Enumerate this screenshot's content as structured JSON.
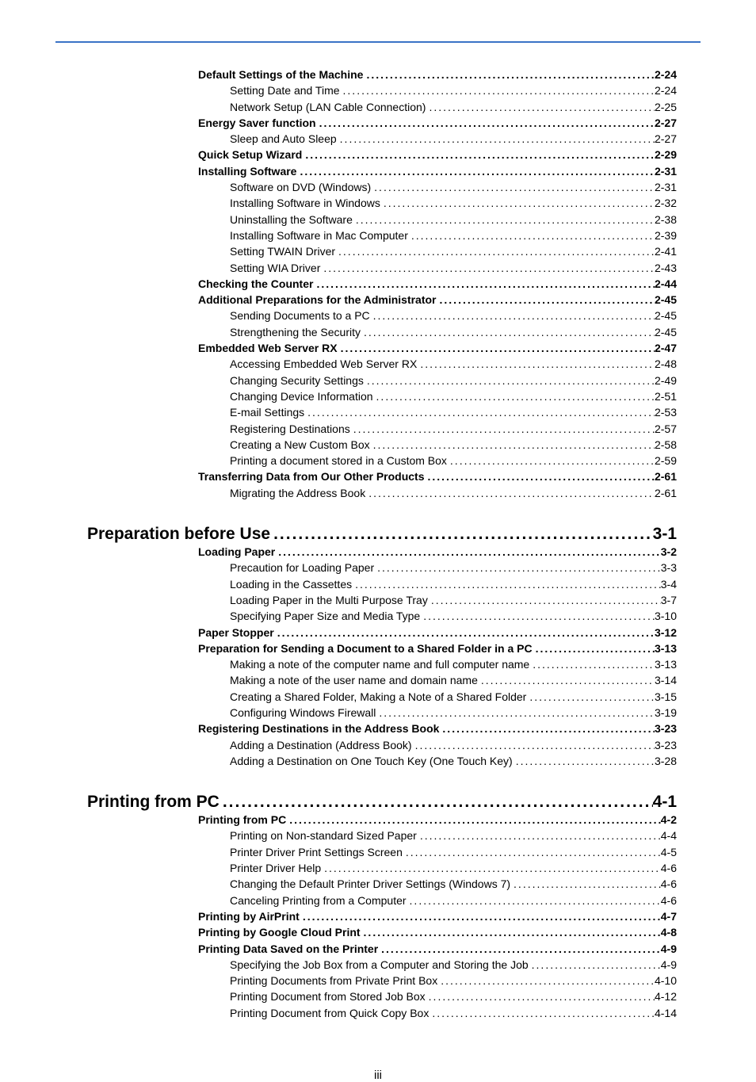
{
  "sections": [
    {
      "chapter_num": "",
      "chapter_title": "",
      "chapter_page": "",
      "entries": [
        {
          "level": 1,
          "title": "Default Settings of the Machine",
          "page": "2-24"
        },
        {
          "level": 2,
          "title": "Setting Date and Time",
          "page": "2-24"
        },
        {
          "level": 2,
          "title": "Network Setup (LAN Cable Connection)",
          "page": "2-25"
        },
        {
          "level": 1,
          "title": "Energy Saver function",
          "page": "2-27"
        },
        {
          "level": 2,
          "title": "Sleep and Auto Sleep",
          "page": "2-27"
        },
        {
          "level": 1,
          "title": "Quick Setup Wizard",
          "page": "2-29"
        },
        {
          "level": 1,
          "title": "Installing Software",
          "page": "2-31"
        },
        {
          "level": 2,
          "title": "Software on DVD (Windows)",
          "page": "2-31"
        },
        {
          "level": 2,
          "title": "Installing Software in Windows",
          "page": "2-32"
        },
        {
          "level": 2,
          "title": "Uninstalling the Software",
          "page": "2-38"
        },
        {
          "level": 2,
          "title": "Installing Software in Mac Computer",
          "page": "2-39"
        },
        {
          "level": 2,
          "title": "Setting TWAIN Driver",
          "page": "2-41"
        },
        {
          "level": 2,
          "title": "Setting WIA Driver",
          "page": "2-43"
        },
        {
          "level": 1,
          "title": "Checking the Counter",
          "page": "2-44"
        },
        {
          "level": 1,
          "title": "Additional Preparations for the Administrator",
          "page": "2-45"
        },
        {
          "level": 2,
          "title": "Sending Documents to a PC",
          "page": "2-45"
        },
        {
          "level": 2,
          "title": "Strengthening the Security",
          "page": "2-45"
        },
        {
          "level": 1,
          "title": "Embedded Web Server RX",
          "page": "2-47"
        },
        {
          "level": 2,
          "title": "Accessing Embedded Web Server RX",
          "page": "2-48"
        },
        {
          "level": 2,
          "title": "Changing Security Settings",
          "page": "2-49"
        },
        {
          "level": 2,
          "title": "Changing Device Information",
          "page": "2-51"
        },
        {
          "level": 2,
          "title": "E-mail Settings",
          "page": "2-53"
        },
        {
          "level": 2,
          "title": "Registering Destinations",
          "page": "2-57"
        },
        {
          "level": 2,
          "title": "Creating a New Custom Box",
          "page": "2-58"
        },
        {
          "level": 2,
          "title": "Printing a document stored in a Custom Box",
          "page": "2-59"
        },
        {
          "level": 1,
          "title": "Transferring Data from Our Other Products",
          "page": "2-61"
        },
        {
          "level": 2,
          "title": "Migrating the Address Book",
          "page": "2-61"
        }
      ]
    },
    {
      "chapter_num": "3",
      "chapter_title": "Preparation before Use",
      "chapter_page": "3-1",
      "entries": [
        {
          "level": 1,
          "title": "Loading Paper",
          "page": "3-2"
        },
        {
          "level": 2,
          "title": "Precaution for Loading Paper",
          "page": "3-3"
        },
        {
          "level": 2,
          "title": "Loading in the Cassettes",
          "page": "3-4"
        },
        {
          "level": 2,
          "title": "Loading Paper in the Multi Purpose Tray",
          "page": "3-7"
        },
        {
          "level": 2,
          "title": "Specifying Paper Size and Media Type",
          "page": "3-10"
        },
        {
          "level": 1,
          "title": "Paper Stopper",
          "page": "3-12"
        },
        {
          "level": 1,
          "title": "Preparation for Sending a Document to a Shared Folder in a PC",
          "page": "3-13"
        },
        {
          "level": 2,
          "title": "Making a note of the computer name and full computer name",
          "page": "3-13"
        },
        {
          "level": 2,
          "title": "Making a note of the user name and domain name",
          "page": "3-14"
        },
        {
          "level": 2,
          "title": "Creating a Shared Folder, Making a Note of a Shared Folder",
          "page": "3-15"
        },
        {
          "level": 2,
          "title": "Configuring Windows Firewall",
          "page": "3-19"
        },
        {
          "level": 1,
          "title": "Registering Destinations in the Address Book",
          "page": "3-23"
        },
        {
          "level": 2,
          "title": "Adding a Destination (Address Book)",
          "page": "3-23"
        },
        {
          "level": 2,
          "title": "Adding a Destination on One Touch Key (One Touch Key)",
          "page": "3-28"
        }
      ]
    },
    {
      "chapter_num": "4",
      "chapter_title": "Printing from PC",
      "chapter_page": "4-1",
      "entries": [
        {
          "level": 1,
          "title": "Printing from PC",
          "page": "4-2"
        },
        {
          "level": 2,
          "title": "Printing on Non-standard Sized Paper",
          "page": "4-4"
        },
        {
          "level": 2,
          "title": "Printer Driver Print Settings Screen",
          "page": "4-5"
        },
        {
          "level": 2,
          "title": "Printer Driver Help",
          "page": "4-6"
        },
        {
          "level": 2,
          "title": "Changing the Default Printer Driver Settings (Windows 7)",
          "page": "4-6"
        },
        {
          "level": 2,
          "title": "Canceling Printing from a Computer",
          "page": "4-6"
        },
        {
          "level": 1,
          "title": "Printing by AirPrint",
          "page": "4-7"
        },
        {
          "level": 1,
          "title": "Printing by Google Cloud Print",
          "page": "4-8"
        },
        {
          "level": 1,
          "title": "Printing Data Saved on the Printer",
          "page": "4-9"
        },
        {
          "level": 2,
          "title": "Specifying the Job Box from a Computer and Storing the Job",
          "page": "4-9"
        },
        {
          "level": 2,
          "title": "Printing Documents from Private Print Box",
          "page": "4-10"
        },
        {
          "level": 2,
          "title": "Printing Document from Stored Job Box",
          "page": "4-12"
        },
        {
          "level": 2,
          "title": "Printing Document from Quick Copy Box",
          "page": "4-14"
        }
      ]
    }
  ],
  "footer": "iii",
  "leader": "........................................................................................................................................................................................................"
}
